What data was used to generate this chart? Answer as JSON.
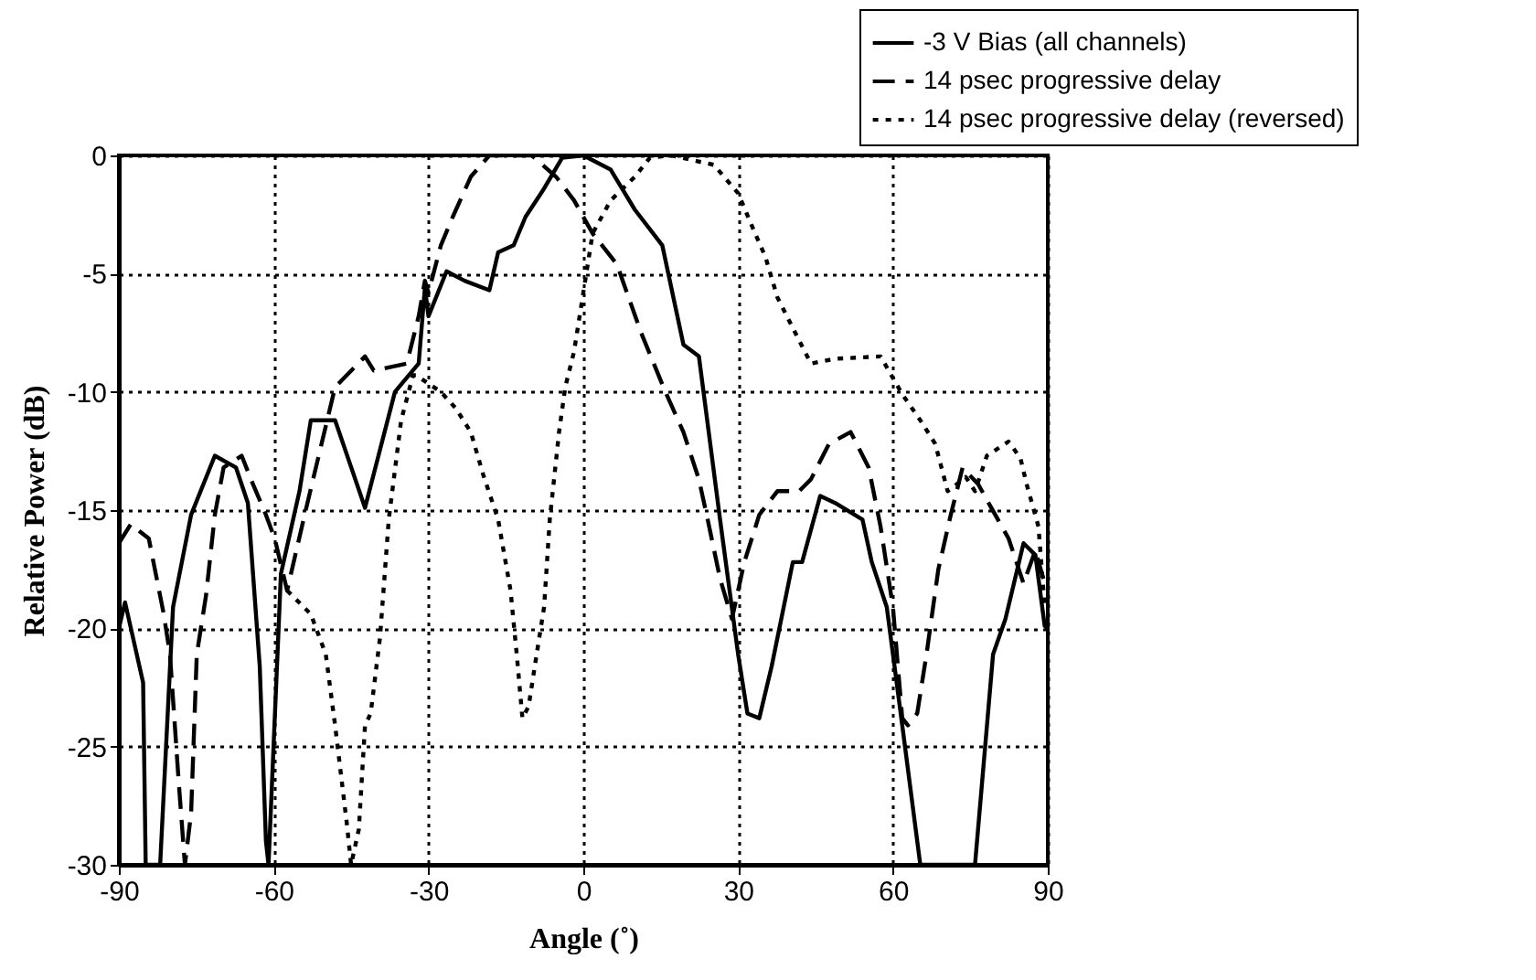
{
  "chart_data": {
    "type": "line",
    "xlabel": "Angle (˚)",
    "ylabel": "Relative Power (dB)",
    "xlim": [
      -90,
      90
    ],
    "ylim": [
      -30,
      0
    ],
    "xticks": [
      -90,
      -60,
      -30,
      0,
      30,
      60,
      90
    ],
    "yticks": [
      -30,
      -25,
      -20,
      -15,
      -10,
      -5,
      0
    ],
    "grid": true,
    "legend": "top right",
    "marker": "none",
    "series": [
      {
        "name": "-3 V Bias (all channels)",
        "color": "#000000",
        "line_style": "solid",
        "x": [
          -90,
          -88.8,
          -85.3,
          -84.8,
          -82,
          -79.5,
          -76,
          -71.4,
          -67.3,
          -65,
          -62.7,
          -61.5,
          -61,
          -58.6,
          -55,
          -52.8,
          -48.1,
          -42.3,
          -36.5,
          -31.9,
          -30.7,
          -30,
          -26.5,
          -23,
          -18.2,
          -16.5,
          -13.5,
          -11.2,
          -7.6,
          -4.1,
          0,
          5.3,
          10,
          15.3,
          19.4,
          22.4,
          26.5,
          30,
          31.8,
          34.1,
          36.5,
          40.6,
          42.4,
          45.9,
          48.8,
          54.1,
          55.9,
          58.8,
          61.8,
          65.3,
          75.9,
          79.4,
          81.8,
          85.3,
          87.6,
          89.4,
          90
        ],
        "values": [
          -20,
          -18.9,
          -22.3,
          -30,
          -30,
          -19.1,
          -15.2,
          -12.7,
          -13.2,
          -14.7,
          -21.6,
          -29,
          -30,
          -17.7,
          -14.2,
          -11.2,
          -11.2,
          -14.9,
          -10,
          -8.8,
          -5.6,
          -6.8,
          -4.9,
          -5.3,
          -5.7,
          -4.1,
          -3.8,
          -2.6,
          -1.4,
          -0.1,
          0,
          -0.6,
          -2.3,
          -3.8,
          -8,
          -8.5,
          -15.4,
          -21.1,
          -23.6,
          -23.8,
          -21.6,
          -17.2,
          -17.2,
          -14.4,
          -14.7,
          -15.4,
          -17.2,
          -19.1,
          -24.1,
          -30,
          -30,
          -21.1,
          -19.6,
          -16.4,
          -16.9,
          -19.9,
          -20
        ]
      },
      {
        "name": "14 psec progressive delay",
        "color": "#000000",
        "line_style": "dashed",
        "x": [
          -90,
          -87.7,
          -84.2,
          -81.3,
          -80.1,
          -78.4,
          -77.2,
          -76,
          -74.9,
          -73.1,
          -71.4,
          -69.7,
          -66.2,
          -64.4,
          -61.5,
          -59.8,
          -57.4,
          -54,
          -51.6,
          -48.1,
          -42.3,
          -40.6,
          -34.2,
          -31.9,
          -30.7,
          -30,
          -27.6,
          -25.3,
          -21.8,
          -18.2,
          -10,
          -5.3,
          -1.8,
          1.8,
          6.5,
          11.2,
          15.9,
          19.4,
          22.4,
          24.1,
          26.5,
          28.8,
          31.2,
          34.1,
          37.6,
          41.8,
          44.1,
          47.6,
          51.8,
          55.3,
          57.6,
          60,
          61.8,
          62.9,
          64.7,
          66.5,
          68.8,
          71.2,
          73.5,
          76.5,
          78.8,
          82.4,
          85.3,
          87.6,
          89.4
        ],
        "values": [
          -16.4,
          -15.6,
          -16.2,
          -19.4,
          -21.1,
          -26.5,
          -30,
          -27.8,
          -21.1,
          -18.6,
          -15.2,
          -13.2,
          -12.7,
          -13.7,
          -15.2,
          -16.2,
          -18.4,
          -15.2,
          -13,
          -9.8,
          -8.5,
          -9.1,
          -8.8,
          -6.8,
          -5.3,
          -5.8,
          -3.8,
          -2.6,
          -0.9,
          0,
          0,
          -0.9,
          -1.9,
          -3.3,
          -4.6,
          -7.5,
          -10,
          -11.7,
          -13.7,
          -15.4,
          -17.9,
          -19.6,
          -17.2,
          -15.2,
          -14.2,
          -14.2,
          -13.7,
          -12.2,
          -11.7,
          -13.2,
          -15.7,
          -19.1,
          -23.8,
          -24.1,
          -23.6,
          -21.1,
          -17.5,
          -15.2,
          -13.2,
          -13.9,
          -14.8,
          -16.2,
          -18.1,
          -16.7,
          -18.1
        ]
      },
      {
        "name": "14 psec progressive delay (reversed)",
        "color": "#000000",
        "line_style": "dotted",
        "x": [
          -57.4,
          -52.8,
          -49.9,
          -48.1,
          -45.8,
          -45,
          -43.5,
          -42.3,
          -41.2,
          -39.4,
          -37.7,
          -35.3,
          -33,
          -32.4,
          -27.6,
          -24.7,
          -21.8,
          -19.4,
          -16.5,
          -14.1,
          -12.9,
          -11.8,
          -10.6,
          -9.4,
          -7.6,
          -6.5,
          -4.7,
          -3.5,
          -1.8,
          0,
          1.8,
          5.3,
          10,
          12.9,
          17,
          25.3,
          30,
          32.9,
          35.3,
          37.6,
          40.6,
          44.1,
          48.8,
          57.6,
          61.8,
          65.3,
          68.2,
          70.6,
          72.4,
          74.1,
          75.9,
          78.2,
          82.4,
          84.7,
          85.9,
          88.2,
          89.4
        ],
        "values": [
          -18.4,
          -19.4,
          -21.1,
          -24.1,
          -28.3,
          -30,
          -28.5,
          -24.1,
          -23.6,
          -20.4,
          -15.4,
          -11.2,
          -9.3,
          -9.3,
          -10,
          -10.7,
          -11.7,
          -13.5,
          -15.4,
          -18.4,
          -21.1,
          -23.8,
          -23.3,
          -21.6,
          -19.1,
          -15.4,
          -11.7,
          -9.8,
          -8.3,
          -5.8,
          -3.3,
          -1.9,
          -0.9,
          -0.1,
          0,
          -0.4,
          -1.6,
          -3.1,
          -4.3,
          -6,
          -7.3,
          -8.8,
          -8.6,
          -8.5,
          -10.1,
          -11.2,
          -12.2,
          -14.2,
          -13.9,
          -13.6,
          -14.2,
          -12.7,
          -12.1,
          -12.8,
          -13.9,
          -15.7,
          -19.1
        ]
      }
    ]
  }
}
